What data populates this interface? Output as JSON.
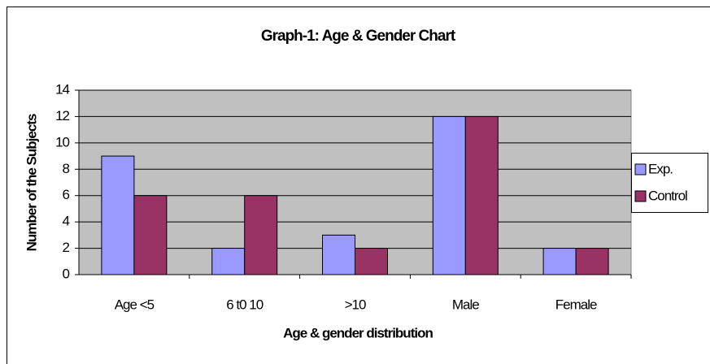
{
  "chart_data": {
    "type": "bar",
    "title": "Graph-1:  Age & Gender Chart",
    "x_label": "Age & gender distribution",
    "y_label": "Number of the Subjects",
    "categories": [
      "Age <5",
      "6 t0 10",
      ">10",
      "Male",
      "Female"
    ],
    "series": [
      {
        "name": "Exp.",
        "color": "#9999ff",
        "values": [
          9,
          2,
          3,
          12,
          2
        ]
      },
      {
        "name": "Control",
        "color": "#993366",
        "values": [
          6,
          6,
          2,
          12,
          2
        ]
      }
    ],
    "ylim": [
      0,
      14
    ],
    "yticks": [
      0,
      2,
      4,
      6,
      8,
      10,
      12,
      14
    ],
    "grid": true,
    "legend": "right"
  }
}
